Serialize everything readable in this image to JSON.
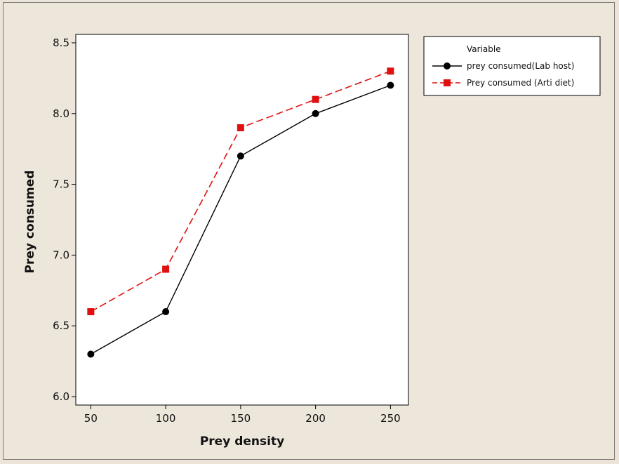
{
  "chart_data": {
    "type": "line",
    "xlabel": "Prey density",
    "ylabel": "Prey consumed",
    "categories": [
      "50",
      "100",
      "150",
      "200",
      "250"
    ],
    "x": [
      50,
      100,
      150,
      200,
      250
    ],
    "yticks": [
      "6.0",
      "6.5",
      "7.0",
      "7.5",
      "8.0",
      "8.5"
    ],
    "ylim": [
      6.0,
      8.5
    ],
    "xlim": [
      40,
      262
    ],
    "grid": false,
    "legend_title": "Variable",
    "legend_position": "top-right outside",
    "series": [
      {
        "name": "prey consumed(Lab host)",
        "values": [
          6.3,
          6.6,
          7.7,
          8.0,
          8.2
        ],
        "color": "#000000",
        "marker": "circle",
        "line": "solid"
      },
      {
        "name": "Prey consumed (Arti diet)",
        "values": [
          6.6,
          6.9,
          7.9,
          8.1,
          8.3
        ],
        "color": "#e01010",
        "marker": "square",
        "line": "dashed"
      }
    ]
  }
}
